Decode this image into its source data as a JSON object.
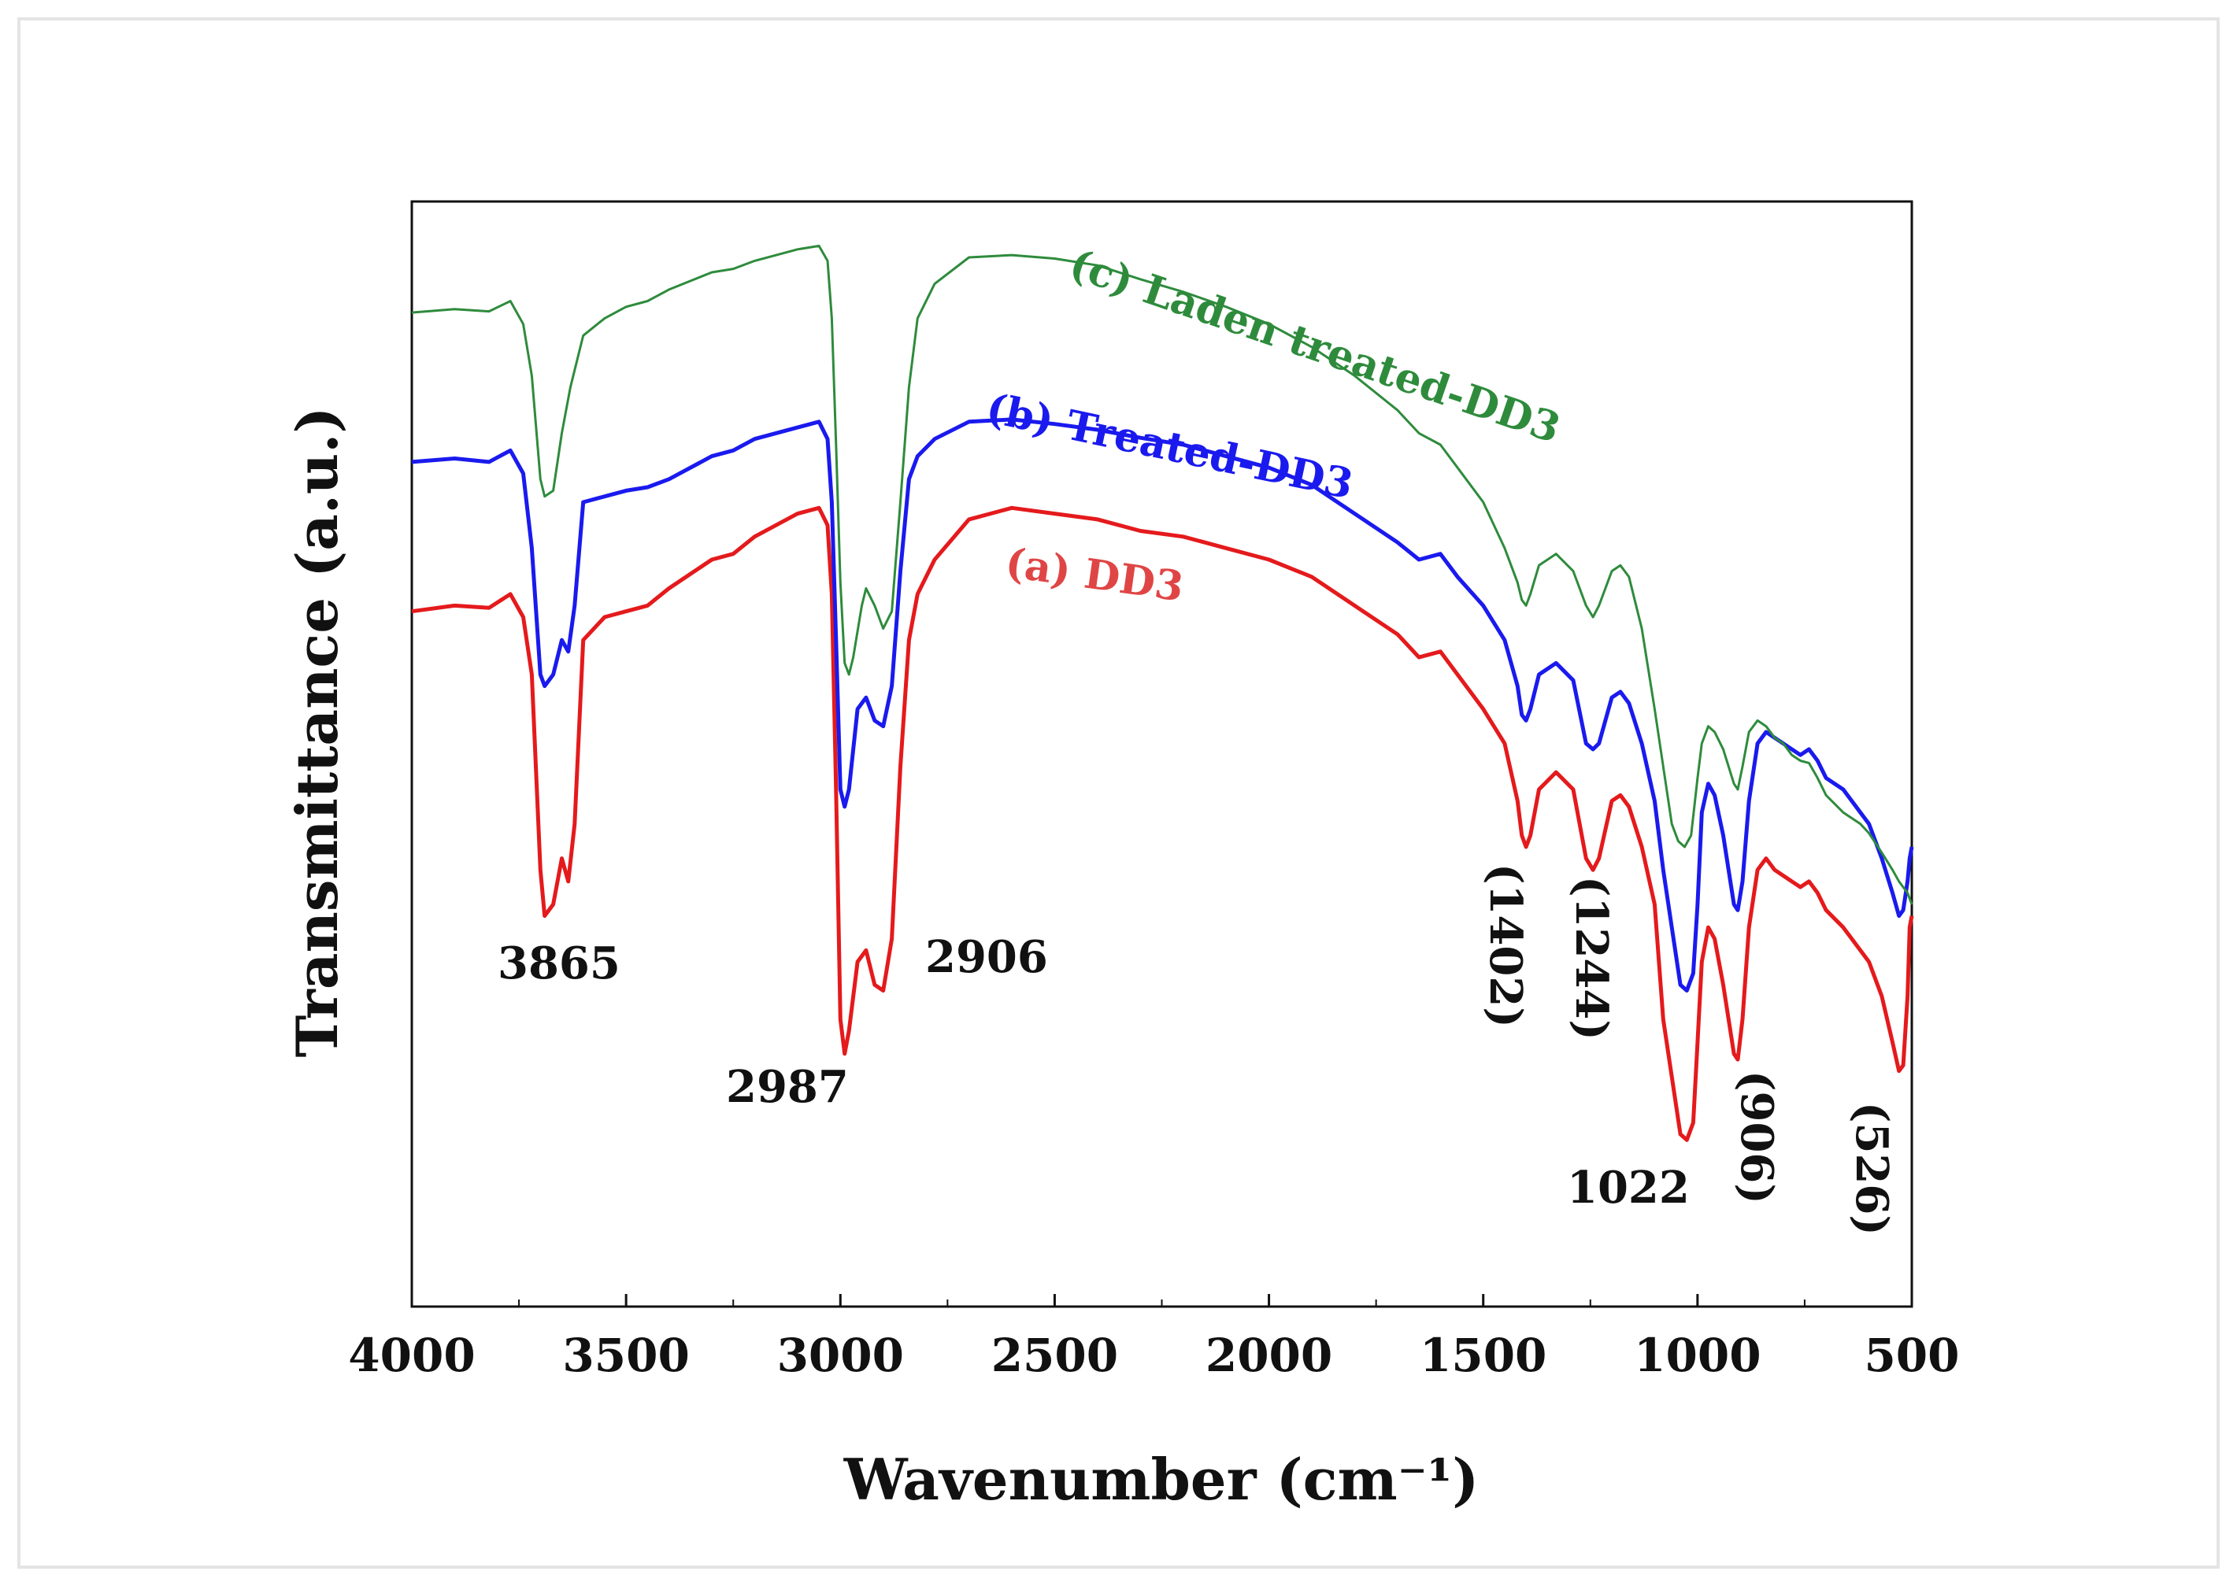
{
  "chart_data": {
    "type": "line",
    "title": "",
    "xlabel": "Wavenumber (cm⁻¹)",
    "ylabel": "Transmittance (a.u.)",
    "xlim": [
      4000,
      500
    ],
    "ylim": [
      0,
      100
    ],
    "x_ticks": [
      "4000",
      "3500",
      "3000",
      "2500",
      "2000",
      "1500",
      "1000",
      "500"
    ],
    "grid": false,
    "legend": "inline labels above curves",
    "series": [
      {
        "name": "(a) DD3",
        "color": "#e41a1c",
        "points": [
          [
            4000,
            60.5
          ],
          [
            3900,
            61
          ],
          [
            3820,
            60.8
          ],
          [
            3770,
            62
          ],
          [
            3740,
            60
          ],
          [
            3720,
            55
          ],
          [
            3700,
            38
          ],
          [
            3690,
            34
          ],
          [
            3670,
            35
          ],
          [
            3650,
            39
          ],
          [
            3635,
            37
          ],
          [
            3620,
            42
          ],
          [
            3600,
            58
          ],
          [
            3550,
            60
          ],
          [
            3500,
            60.5
          ],
          [
            3450,
            61
          ],
          [
            3400,
            62.5
          ],
          [
            3300,
            65
          ],
          [
            3250,
            65.5
          ],
          [
            3200,
            67
          ],
          [
            3100,
            69
          ],
          [
            3050,
            69.5
          ],
          [
            3030,
            68
          ],
          [
            3020,
            62
          ],
          [
            3010,
            45
          ],
          [
            3000,
            25
          ],
          [
            2990,
            22
          ],
          [
            2980,
            24
          ],
          [
            2960,
            30
          ],
          [
            2940,
            31
          ],
          [
            2920,
            28
          ],
          [
            2900,
            27.5
          ],
          [
            2880,
            32
          ],
          [
            2860,
            47
          ],
          [
            2840,
            58
          ],
          [
            2820,
            62
          ],
          [
            2780,
            65
          ],
          [
            2700,
            68.5
          ],
          [
            2600,
            69.5
          ],
          [
            2500,
            69
          ],
          [
            2400,
            68.5
          ],
          [
            2300,
            67.5
          ],
          [
            2200,
            67
          ],
          [
            2100,
            66
          ],
          [
            2000,
            65
          ],
          [
            1900,
            63.5
          ],
          [
            1800,
            61
          ],
          [
            1700,
            58.5
          ],
          [
            1650,
            56.5
          ],
          [
            1600,
            57
          ],
          [
            1560,
            55
          ],
          [
            1500,
            52
          ],
          [
            1450,
            49
          ],
          [
            1420,
            44
          ],
          [
            1410,
            41
          ],
          [
            1400,
            40
          ],
          [
            1390,
            41
          ],
          [
            1370,
            45
          ],
          [
            1330,
            46.5
          ],
          [
            1290,
            45
          ],
          [
            1260,
            39
          ],
          [
            1244,
            38
          ],
          [
            1230,
            39
          ],
          [
            1200,
            44
          ],
          [
            1180,
            44.5
          ],
          [
            1160,
            43.5
          ],
          [
            1130,
            40
          ],
          [
            1100,
            35
          ],
          [
            1080,
            25
          ],
          [
            1060,
            20
          ],
          [
            1040,
            15
          ],
          [
            1025,
            14.5
          ],
          [
            1010,
            16
          ],
          [
            1000,
            23
          ],
          [
            990,
            30
          ],
          [
            975,
            33
          ],
          [
            960,
            32
          ],
          [
            940,
            28
          ],
          [
            915,
            22
          ],
          [
            906,
            21.5
          ],
          [
            895,
            25
          ],
          [
            880,
            33
          ],
          [
            860,
            38
          ],
          [
            840,
            39
          ],
          [
            820,
            38
          ],
          [
            800,
            37.5
          ],
          [
            780,
            37
          ],
          [
            760,
            36.5
          ],
          [
            740,
            37
          ],
          [
            720,
            36
          ],
          [
            700,
            34.5
          ],
          [
            660,
            33
          ],
          [
            620,
            31
          ],
          [
            600,
            30
          ],
          [
            570,
            27
          ],
          [
            545,
            23
          ],
          [
            530,
            20.5
          ],
          [
            520,
            21
          ],
          [
            510,
            27
          ],
          [
            505,
            33
          ],
          [
            500,
            34
          ]
        ]
      },
      {
        "name": "(b) Treated-DD3",
        "color": "#1a1aee",
        "points": [
          [
            4000,
            73.5
          ],
          [
            3900,
            73.8
          ],
          [
            3820,
            73.5
          ],
          [
            3770,
            74.5
          ],
          [
            3740,
            72.5
          ],
          [
            3720,
            66
          ],
          [
            3700,
            55
          ],
          [
            3690,
            54
          ],
          [
            3670,
            55
          ],
          [
            3650,
            58
          ],
          [
            3635,
            57
          ],
          [
            3620,
            61
          ],
          [
            3600,
            70
          ],
          [
            3550,
            70.5
          ],
          [
            3500,
            71
          ],
          [
            3450,
            71.3
          ],
          [
            3400,
            72
          ],
          [
            3300,
            74
          ],
          [
            3250,
            74.5
          ],
          [
            3200,
            75.5
          ],
          [
            3100,
            76.5
          ],
          [
            3050,
            77
          ],
          [
            3030,
            75.5
          ],
          [
            3020,
            70
          ],
          [
            3010,
            58
          ],
          [
            3000,
            45
          ],
          [
            2990,
            43.5
          ],
          [
            2980,
            45
          ],
          [
            2960,
            52
          ],
          [
            2940,
            53
          ],
          [
            2920,
            51
          ],
          [
            2900,
            50.5
          ],
          [
            2880,
            54
          ],
          [
            2860,
            64
          ],
          [
            2840,
            72
          ],
          [
            2820,
            74
          ],
          [
            2780,
            75.5
          ],
          [
            2700,
            77
          ],
          [
            2600,
            77.2
          ],
          [
            2500,
            76.8
          ],
          [
            2400,
            76.3
          ],
          [
            2300,
            75.6
          ],
          [
            2200,
            75
          ],
          [
            2100,
            74
          ],
          [
            2000,
            73
          ],
          [
            1900,
            71.5
          ],
          [
            1800,
            69
          ],
          [
            1700,
            66.5
          ],
          [
            1650,
            65
          ],
          [
            1600,
            65.5
          ],
          [
            1560,
            63.5
          ],
          [
            1500,
            61
          ],
          [
            1450,
            58
          ],
          [
            1420,
            54
          ],
          [
            1410,
            51.5
          ],
          [
            1400,
            51
          ],
          [
            1390,
            52
          ],
          [
            1370,
            55
          ],
          [
            1330,
            56
          ],
          [
            1290,
            54.5
          ],
          [
            1260,
            49
          ],
          [
            1244,
            48.5
          ],
          [
            1230,
            49
          ],
          [
            1200,
            53
          ],
          [
            1180,
            53.5
          ],
          [
            1160,
            52.5
          ],
          [
            1130,
            49
          ],
          [
            1100,
            44
          ],
          [
            1080,
            38
          ],
          [
            1060,
            33
          ],
          [
            1040,
            28
          ],
          [
            1025,
            27.5
          ],
          [
            1010,
            29
          ],
          [
            1000,
            35
          ],
          [
            990,
            43
          ],
          [
            975,
            45.5
          ],
          [
            960,
            44.5
          ],
          [
            940,
            41
          ],
          [
            915,
            35
          ],
          [
            906,
            34.5
          ],
          [
            895,
            37
          ],
          [
            880,
            44
          ],
          [
            860,
            49
          ],
          [
            840,
            50
          ],
          [
            820,
            49.5
          ],
          [
            800,
            49
          ],
          [
            780,
            48.5
          ],
          [
            760,
            48
          ],
          [
            740,
            48.5
          ],
          [
            720,
            47.5
          ],
          [
            700,
            46
          ],
          [
            660,
            45
          ],
          [
            620,
            43
          ],
          [
            600,
            42
          ],
          [
            570,
            39
          ],
          [
            545,
            36
          ],
          [
            530,
            34
          ],
          [
            520,
            34.5
          ],
          [
            510,
            37
          ],
          [
            505,
            39
          ],
          [
            500,
            40
          ]
        ]
      },
      {
        "name": "(c) Laden treated-DD3",
        "color": "#2e8b3c",
        "points": [
          [
            4000,
            86.5
          ],
          [
            3900,
            86.8
          ],
          [
            3820,
            86.6
          ],
          [
            3770,
            87.5
          ],
          [
            3740,
            85.5
          ],
          [
            3720,
            81
          ],
          [
            3700,
            72
          ],
          [
            3690,
            70.5
          ],
          [
            3670,
            71
          ],
          [
            3650,
            76
          ],
          [
            3630,
            80
          ],
          [
            3600,
            84.5
          ],
          [
            3550,
            86
          ],
          [
            3500,
            87
          ],
          [
            3450,
            87.5
          ],
          [
            3400,
            88.5
          ],
          [
            3300,
            90
          ],
          [
            3250,
            90.3
          ],
          [
            3200,
            91
          ],
          [
            3100,
            92
          ],
          [
            3050,
            92.3
          ],
          [
            3030,
            91
          ],
          [
            3020,
            86
          ],
          [
            3010,
            75
          ],
          [
            3000,
            63
          ],
          [
            2990,
            56
          ],
          [
            2980,
            55
          ],
          [
            2970,
            56.5
          ],
          [
            2950,
            61
          ],
          [
            2940,
            62.5
          ],
          [
            2920,
            61
          ],
          [
            2900,
            59
          ],
          [
            2880,
            60.5
          ],
          [
            2860,
            70
          ],
          [
            2840,
            80
          ],
          [
            2820,
            86
          ],
          [
            2780,
            89
          ],
          [
            2700,
            91.3
          ],
          [
            2600,
            91.5
          ],
          [
            2500,
            91.2
          ],
          [
            2400,
            90.6
          ],
          [
            2300,
            89.4
          ],
          [
            2200,
            88.3
          ],
          [
            2100,
            87
          ],
          [
            2000,
            85.5
          ],
          [
            1900,
            83.5
          ],
          [
            1800,
            81
          ],
          [
            1700,
            78
          ],
          [
            1650,
            76
          ],
          [
            1600,
            75
          ],
          [
            1560,
            73
          ],
          [
            1500,
            70
          ],
          [
            1450,
            66
          ],
          [
            1420,
            63
          ],
          [
            1410,
            61.5
          ],
          [
            1400,
            61
          ],
          [
            1390,
            62
          ],
          [
            1370,
            64.5
          ],
          [
            1330,
            65.5
          ],
          [
            1290,
            64
          ],
          [
            1260,
            61
          ],
          [
            1244,
            60
          ],
          [
            1230,
            61
          ],
          [
            1200,
            64
          ],
          [
            1180,
            64.5
          ],
          [
            1160,
            63.5
          ],
          [
            1130,
            59
          ],
          [
            1100,
            52
          ],
          [
            1080,
            47
          ],
          [
            1060,
            42
          ],
          [
            1045,
            40.5
          ],
          [
            1030,
            40
          ],
          [
            1015,
            41
          ],
          [
            1000,
            46
          ],
          [
            990,
            49
          ],
          [
            975,
            50.5
          ],
          [
            960,
            50
          ],
          [
            940,
            48.5
          ],
          [
            915,
            45.5
          ],
          [
            906,
            45
          ],
          [
            895,
            47
          ],
          [
            880,
            50
          ],
          [
            860,
            51
          ],
          [
            840,
            50.5
          ],
          [
            820,
            49.5
          ],
          [
            800,
            49
          ],
          [
            780,
            48
          ],
          [
            760,
            47.5
          ],
          [
            740,
            47.3
          ],
          [
            720,
            46
          ],
          [
            700,
            44.5
          ],
          [
            660,
            43
          ],
          [
            620,
            42
          ],
          [
            600,
            41.2
          ],
          [
            570,
            39.5
          ],
          [
            545,
            38
          ],
          [
            530,
            37
          ],
          [
            520,
            36.5
          ],
          [
            510,
            36
          ],
          [
            505,
            35.5
          ],
          [
            500,
            35
          ]
        ]
      }
    ],
    "annotations": [
      "3865",
      "2987",
      "2906",
      "(1402)",
      "(1244)",
      "1022",
      "(906)",
      "(526)"
    ]
  }
}
